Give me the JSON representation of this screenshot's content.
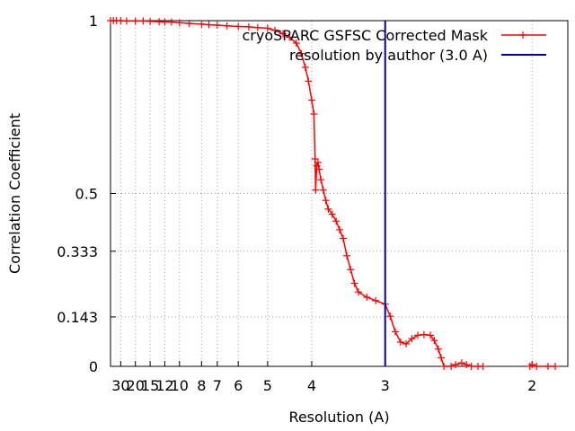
{
  "chart_data": {
    "type": "line",
    "xlabel": "Resolution (A)",
    "ylabel": "Correlation Coefficient",
    "x_scale": "reciprocal",
    "xlim": [
      46,
      1.85
    ],
    "ylim": [
      0,
      1
    ],
    "grid": true,
    "legend_position": "top-right",
    "x_ticks": [
      {
        "value": 30,
        "label": "30"
      },
      {
        "value": 20,
        "label": "20"
      },
      {
        "value": 15,
        "label": "15"
      },
      {
        "value": 12,
        "label": "12"
      },
      {
        "value": 10,
        "label": "10"
      },
      {
        "value": 8,
        "label": "8"
      },
      {
        "value": 7,
        "label": "7"
      },
      {
        "value": 6,
        "label": "6"
      },
      {
        "value": 5,
        "label": "5"
      },
      {
        "value": 4,
        "label": "4"
      },
      {
        "value": 3,
        "label": "3"
      },
      {
        "value": 2,
        "label": "2"
      }
    ],
    "y_ticks": [
      {
        "value": 0,
        "label": "0"
      },
      {
        "value": 0.143,
        "label": "0.143"
      },
      {
        "value": 0.333,
        "label": "0.333"
      },
      {
        "value": 0.5,
        "label": "0.5"
      },
      {
        "value": 1,
        "label": "1"
      }
    ],
    "series": [
      {
        "name": "cryoSPARC GSFSC Corrected Mask",
        "color": "#ff0000",
        "marker": "plus",
        "points": [
          [
            46.0,
            1.0
          ],
          [
            40.0,
            1.0
          ],
          [
            35.0,
            1.0
          ],
          [
            30.0,
            1.0
          ],
          [
            25.0,
            0.999
          ],
          [
            20.0,
            0.999
          ],
          [
            17.0,
            0.999
          ],
          [
            15.0,
            0.998
          ],
          [
            13.0,
            0.997
          ],
          [
            12.0,
            0.996
          ],
          [
            11.0,
            0.996
          ],
          [
            10.0,
            0.994
          ],
          [
            9.0,
            0.992
          ],
          [
            8.0,
            0.99
          ],
          [
            7.5,
            0.988
          ],
          [
            7.0,
            0.987
          ],
          [
            6.5,
            0.985
          ],
          [
            6.0,
            0.983
          ],
          [
            5.6,
            0.982
          ],
          [
            5.3,
            0.98
          ],
          [
            5.0,
            0.978
          ],
          [
            4.8,
            0.972
          ],
          [
            4.6,
            0.962
          ],
          [
            4.45,
            0.952
          ],
          [
            4.3,
            0.935
          ],
          [
            4.2,
            0.905
          ],
          [
            4.12,
            0.865
          ],
          [
            4.06,
            0.825
          ],
          [
            4.0,
            0.77
          ],
          [
            3.96,
            0.73
          ],
          [
            3.94,
            0.6
          ],
          [
            3.93,
            0.51
          ],
          [
            3.91,
            0.58
          ],
          [
            3.89,
            0.59
          ],
          [
            3.87,
            0.57
          ],
          [
            3.84,
            0.54
          ],
          [
            3.8,
            0.51
          ],
          [
            3.76,
            0.48
          ],
          [
            3.72,
            0.455
          ],
          [
            3.66,
            0.44
          ],
          [
            3.6,
            0.42
          ],
          [
            3.55,
            0.395
          ],
          [
            3.5,
            0.37
          ],
          [
            3.45,
            0.32
          ],
          [
            3.4,
            0.28
          ],
          [
            3.35,
            0.24
          ],
          [
            3.3,
            0.215
          ],
          [
            3.2,
            0.2
          ],
          [
            3.1,
            0.19
          ],
          [
            3.0,
            0.18
          ],
          [
            2.95,
            0.145
          ],
          [
            2.9,
            0.1
          ],
          [
            2.85,
            0.07
          ],
          [
            2.8,
            0.065
          ],
          [
            2.75,
            0.08
          ],
          [
            2.7,
            0.09
          ],
          [
            2.65,
            0.092
          ],
          [
            2.6,
            0.09
          ],
          [
            2.57,
            0.075
          ],
          [
            2.54,
            0.05
          ],
          [
            2.52,
            0.025
          ],
          [
            2.5,
            0.0
          ],
          [
            2.45,
            0.0
          ],
          [
            2.42,
            0.005
          ],
          [
            2.38,
            0.01
          ],
          [
            2.35,
            0.005
          ],
          [
            2.32,
            0.0
          ],
          [
            2.28,
            0.0
          ],
          [
            2.25,
            0.0
          ]
        ]
      },
      {
        "name": "resolution by author (3.0 A)",
        "color": "#0000aa",
        "type": "vertical_line",
        "x": 3.0
      }
    ],
    "extra_series_points": [
      [
        2.01,
        0.0
      ],
      [
        2.0,
        0.005
      ],
      [
        1.98,
        0.0
      ],
      [
        1.93,
        0.0
      ],
      [
        1.9,
        0.0
      ]
    ]
  }
}
